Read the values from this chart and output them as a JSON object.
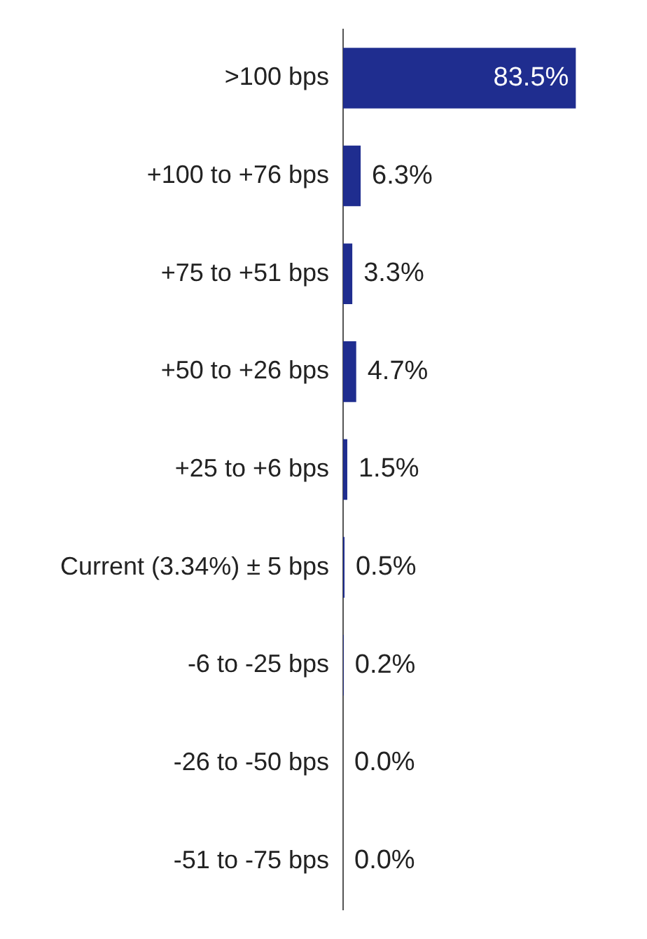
{
  "chart_data": {
    "type": "bar",
    "orientation": "horizontal",
    "categories": [
      ">100 bps",
      "+100 to +76 bps",
      "+75 to +51 bps",
      "+50 to +26 bps",
      "+25 to +6 bps",
      "Current (3.34%) ± 5 bps",
      "-6 to -25 bps",
      "-26 to -50 bps",
      "-51 to -75 bps"
    ],
    "values": [
      83.5,
      6.3,
      3.3,
      4.7,
      1.5,
      0.5,
      0.2,
      0.0,
      0.0
    ],
    "value_labels": [
      "83.5%",
      "6.3%",
      "3.3%",
      "4.7%",
      "1.5%",
      "0.5%",
      "0.2%",
      "0.0%",
      "0.0%"
    ],
    "color": "#1f2d8f",
    "grid": false,
    "legend": false
  }
}
